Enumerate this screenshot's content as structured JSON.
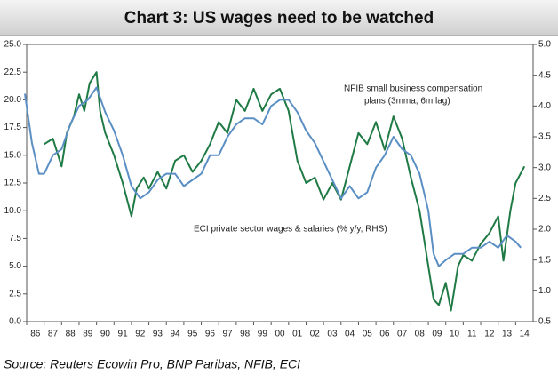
{
  "chart_data": {
    "type": "line",
    "title": "Chart 3: US wages need to be watched",
    "annotations": [
      "NFIB small business compensation",
      "plans (3mma, 6m lag)",
      "ECI private sector wages & salaries (% y/y, RHS)"
    ],
    "source": "Source: Reuters Ecowin Pro, BNP Paribas, NFIB, ECI",
    "xlim": [
      1986,
      2015
    ],
    "xticks": [
      {
        "value": 1986,
        "label": "86"
      },
      {
        "value": 1987,
        "label": "87"
      },
      {
        "value": 1988,
        "label": "88"
      },
      {
        "value": 1989,
        "label": "89"
      },
      {
        "value": 1990,
        "label": "90"
      },
      {
        "value": 1991,
        "label": "91"
      },
      {
        "value": 1992,
        "label": "92"
      },
      {
        "value": 1993,
        "label": "93"
      },
      {
        "value": 1994,
        "label": "94"
      },
      {
        "value": 1995,
        "label": "95"
      },
      {
        "value": 1996,
        "label": "96"
      },
      {
        "value": 1997,
        "label": "97"
      },
      {
        "value": 1998,
        "label": "98"
      },
      {
        "value": 1999,
        "label": "99"
      },
      {
        "value": 2000,
        "label": "00"
      },
      {
        "value": 2001,
        "label": "01"
      },
      {
        "value": 2002,
        "label": "02"
      },
      {
        "value": 2003,
        "label": "03"
      },
      {
        "value": 2004,
        "label": "04"
      },
      {
        "value": 2005,
        "label": "05"
      },
      {
        "value": 2006,
        "label": "06"
      },
      {
        "value": 2007,
        "label": "07"
      },
      {
        "value": 2008,
        "label": "08"
      },
      {
        "value": 2009,
        "label": "09"
      },
      {
        "value": 2010,
        "label": "10"
      },
      {
        "value": 2011,
        "label": "11"
      },
      {
        "value": 2012,
        "label": "12"
      },
      {
        "value": 2013,
        "label": "13"
      },
      {
        "value": 2014,
        "label": "14"
      }
    ],
    "ylim": [
      0,
      25
    ],
    "yticks": [
      {
        "value": 0,
        "label": "0.0"
      },
      2.5,
      {
        "value": 5,
        "label": "5.0"
      },
      7.5,
      {
        "value": 10,
        "label": "10.0"
      },
      12.5,
      {
        "value": 15,
        "label": "15.0"
      },
      17.5,
      {
        "value": 20,
        "label": "20.0"
      },
      22.5,
      {
        "value": 25,
        "label": "25.0"
      }
    ],
    "y2lim": [
      0.5,
      5
    ],
    "y2ticks": [
      0.5,
      {
        "value": 1,
        "label": "1.0"
      },
      1.5,
      {
        "value": 2,
        "label": "2.0"
      },
      2.5,
      {
        "value": 3,
        "label": "3.0"
      },
      3.5,
      {
        "value": 4,
        "label": "4.0"
      },
      4.5,
      {
        "value": 5,
        "label": "5.0"
      }
    ],
    "series": [
      {
        "color": "#1f7a45",
        "x": [
          1987.0,
          1987.5,
          1988.0,
          1988.3,
          1988.7,
          1989.0,
          1989.3,
          1989.6,
          1990.0,
          1990.2,
          1990.5,
          1991.0,
          1991.5,
          1992.0,
          1992.3,
          1992.7,
          1993.0,
          1993.5,
          1994.0,
          1994.5,
          1995.0,
          1995.5,
          1996.0,
          1996.5,
          1997.0,
          1997.5,
          1998.0,
          1998.5,
          1999.0,
          1999.5,
          2000.0,
          2000.5,
          2001.0,
          2001.5,
          2002.0,
          2002.5,
          2003.0,
          2003.5,
          2004.0,
          2004.5,
          2005.0,
          2005.5,
          2006.0,
          2006.5,
          2007.0,
          2007.5,
          2008.0,
          2008.5,
          2009.0,
          2009.3,
          2009.6,
          2010.0,
          2010.3,
          2010.7,
          2011.0,
          2011.5,
          2012.0,
          2012.5,
          2013.0,
          2013.3,
          2013.7,
          2014.0,
          2014.5
        ],
        "values": [
          16,
          16.5,
          14,
          17,
          18.5,
          20.5,
          19,
          21.5,
          22.5,
          19,
          17,
          15,
          12.5,
          9.5,
          12,
          13,
          12,
          13.5,
          12,
          14.5,
          15,
          13.5,
          14.5,
          16,
          18,
          17,
          20,
          19,
          21,
          19,
          20.5,
          21,
          19,
          14.5,
          12.5,
          13,
          11,
          12.5,
          11,
          14,
          17,
          16,
          18,
          15.5,
          18.5,
          16.5,
          13,
          10,
          5,
          2,
          1.5,
          3.5,
          1,
          5,
          6,
          5.5,
          7,
          8,
          9.5,
          5.5,
          10,
          12.5,
          14
        ]
      },
      {
        "color": "#5b8fc4",
        "axis": "y2",
        "x": [
          1985.9,
          1986.3,
          1986.7,
          1987.0,
          1987.5,
          1988.0,
          1988.5,
          1989.0,
          1989.5,
          1990.0,
          1990.5,
          1991.0,
          1991.5,
          1992.0,
          1992.5,
          1993.0,
          1993.5,
          1994.0,
          1994.5,
          1995.0,
          1995.5,
          1996.0,
          1996.5,
          1997.0,
          1997.5,
          1998.0,
          1998.5,
          1999.0,
          1999.5,
          2000.0,
          2000.5,
          2001.0,
          2001.5,
          2002.0,
          2002.5,
          2003.0,
          2003.5,
          2004.0,
          2004.5,
          2005.0,
          2005.5,
          2006.0,
          2006.5,
          2007.0,
          2007.5,
          2008.0,
          2008.5,
          2009.0,
          2009.3,
          2009.6,
          2010.0,
          2010.5,
          2011.0,
          2011.5,
          2012.0,
          2012.5,
          2013.0,
          2013.5,
          2014.0,
          2014.3
        ],
        "values": [
          4.2,
          3.4,
          2.9,
          2.9,
          3.2,
          3.3,
          3.7,
          4.0,
          4.1,
          4.3,
          3.9,
          3.6,
          3.2,
          2.7,
          2.5,
          2.6,
          2.8,
          2.9,
          2.9,
          2.7,
          2.8,
          2.9,
          3.2,
          3.2,
          3.5,
          3.7,
          3.8,
          3.8,
          3.7,
          4.0,
          4.1,
          4.1,
          3.9,
          3.6,
          3.4,
          3.1,
          2.8,
          2.5,
          2.7,
          2.5,
          2.6,
          3.0,
          3.2,
          3.5,
          3.3,
          3.2,
          2.9,
          2.3,
          1.6,
          1.4,
          1.5,
          1.6,
          1.6,
          1.7,
          1.7,
          1.8,
          1.7,
          1.9,
          1.8,
          1.7
        ]
      }
    ]
  }
}
